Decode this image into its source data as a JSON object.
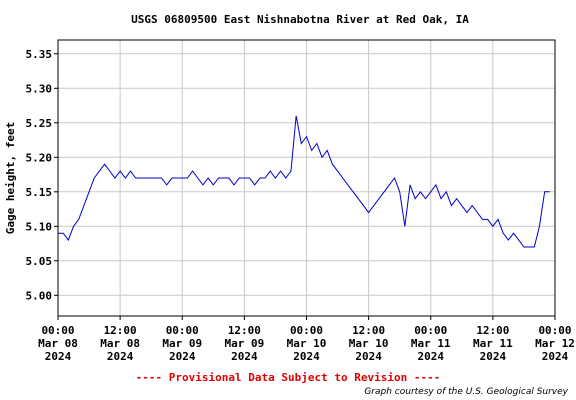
{
  "chart_data": {
    "type": "line",
    "title": "USGS 06809500 East Nishnabotna River at Red Oak, IA",
    "y_label": "Gage height, feet",
    "footer": "---- Provisional Data Subject to Revision ----",
    "credit": "Graph courtesy of the U.S. Geological Survey",
    "color": "#0000cc",
    "grid": true,
    "xlim": [
      "2024-03-08T00:00",
      "2024-03-12T00:00"
    ],
    "xticks": [
      {
        "value": "2024-03-08T00:00",
        "label": "00:00\nMar 08\n2024"
      },
      {
        "value": "2024-03-08T12:00",
        "label": "12:00\nMar 08\n2024"
      },
      {
        "value": "2024-03-09T00:00",
        "label": "00:00\nMar 09\n2024"
      },
      {
        "value": "2024-03-09T12:00",
        "label": "12:00\nMar 09\n2024"
      },
      {
        "value": "2024-03-10T00:00",
        "label": "00:00\nMar 10\n2024"
      },
      {
        "value": "2024-03-10T12:00",
        "label": "12:00\nMar 10\n2024"
      },
      {
        "value": "2024-03-11T00:00",
        "label": "00:00\nMar 11\n2024"
      },
      {
        "value": "2024-03-11T12:00",
        "label": "12:00\nMar 11\n2024"
      },
      {
        "value": "2024-03-12T00:00",
        "label": "00:00\nMar 12\n2024"
      }
    ],
    "ylim": [
      4.97,
      5.37
    ],
    "yticks": [
      {
        "value": 5.0,
        "label": "5.00"
      },
      5.05,
      {
        "value": 5.1,
        "label": "5.10"
      },
      5.15,
      {
        "value": 5.2,
        "label": "5.20"
      },
      5.25,
      {
        "value": 5.3,
        "label": "5.30"
      },
      5.35
    ],
    "x": [
      "2024-03-08T00:00",
      "2024-03-08T01:00",
      "2024-03-08T02:00",
      "2024-03-08T03:00",
      "2024-03-08T04:00",
      "2024-03-08T05:00",
      "2024-03-08T06:00",
      "2024-03-08T07:00",
      "2024-03-08T08:00",
      "2024-03-08T09:00",
      "2024-03-08T10:00",
      "2024-03-08T11:00",
      "2024-03-08T12:00",
      "2024-03-08T13:00",
      "2024-03-08T14:00",
      "2024-03-08T15:00",
      "2024-03-08T16:00",
      "2024-03-08T17:00",
      "2024-03-08T18:00",
      "2024-03-08T19:00",
      "2024-03-08T20:00",
      "2024-03-08T21:00",
      "2024-03-08T22:00",
      "2024-03-08T23:00",
      "2024-03-09T00:00",
      "2024-03-09T01:00",
      "2024-03-09T02:00",
      "2024-03-09T03:00",
      "2024-03-09T04:00",
      "2024-03-09T05:00",
      "2024-03-09T06:00",
      "2024-03-09T07:00",
      "2024-03-09T08:00",
      "2024-03-09T09:00",
      "2024-03-09T10:00",
      "2024-03-09T11:00",
      "2024-03-09T12:00",
      "2024-03-09T13:00",
      "2024-03-09T14:00",
      "2024-03-09T15:00",
      "2024-03-09T16:00",
      "2024-03-09T17:00",
      "2024-03-09T18:00",
      "2024-03-09T19:00",
      "2024-03-09T20:00",
      "2024-03-09T21:00",
      "2024-03-09T22:00",
      "2024-03-09T23:00",
      "2024-03-10T00:00",
      "2024-03-10T01:00",
      "2024-03-10T02:00",
      "2024-03-10T03:00",
      "2024-03-10T04:00",
      "2024-03-10T05:00",
      "2024-03-10T06:00",
      "2024-03-10T07:00",
      "2024-03-10T08:00",
      "2024-03-10T09:00",
      "2024-03-10T10:00",
      "2024-03-10T11:00",
      "2024-03-10T12:00",
      "2024-03-10T13:00",
      "2024-03-10T14:00",
      "2024-03-10T15:00",
      "2024-03-10T16:00",
      "2024-03-10T17:00",
      "2024-03-10T18:00",
      "2024-03-10T19:00",
      "2024-03-10T20:00",
      "2024-03-10T21:00",
      "2024-03-10T22:00",
      "2024-03-10T23:00",
      "2024-03-11T00:00",
      "2024-03-11T01:00",
      "2024-03-11T02:00",
      "2024-03-11T03:00",
      "2024-03-11T04:00",
      "2024-03-11T05:00",
      "2024-03-11T06:00",
      "2024-03-11T07:00",
      "2024-03-11T08:00",
      "2024-03-11T09:00",
      "2024-03-11T10:00",
      "2024-03-11T11:00",
      "2024-03-11T12:00",
      "2024-03-11T13:00",
      "2024-03-11T14:00",
      "2024-03-11T15:00",
      "2024-03-11T16:00",
      "2024-03-11T17:00",
      "2024-03-11T18:00",
      "2024-03-11T19:00",
      "2024-03-11T20:00",
      "2024-03-11T21:00",
      "2024-03-11T22:00",
      "2024-03-11T23:00"
    ],
    "values": [
      5.09,
      5.09,
      5.08,
      5.1,
      5.11,
      5.13,
      5.15,
      5.17,
      5.18,
      5.19,
      5.18,
      5.17,
      5.18,
      5.17,
      5.18,
      5.17,
      5.17,
      5.17,
      5.17,
      5.17,
      5.17,
      5.16,
      5.17,
      5.17,
      5.17,
      5.17,
      5.18,
      5.17,
      5.16,
      5.17,
      5.16,
      5.17,
      5.17,
      5.17,
      5.16,
      5.17,
      5.17,
      5.17,
      5.16,
      5.17,
      5.17,
      5.18,
      5.17,
      5.18,
      5.17,
      5.18,
      5.26,
      5.22,
      5.23,
      5.21,
      5.22,
      5.2,
      5.21,
      5.19,
      5.18,
      5.17,
      5.16,
      5.15,
      5.14,
      5.13,
      5.12,
      5.13,
      5.14,
      5.15,
      5.16,
      5.17,
      5.15,
      5.1,
      5.16,
      5.14,
      5.15,
      5.14,
      5.15,
      5.16,
      5.14,
      5.15,
      5.13,
      5.14,
      5.13,
      5.12,
      5.13,
      5.12,
      5.11,
      5.11,
      5.1,
      5.11,
      5.09,
      5.08,
      5.09,
      5.08,
      5.07,
      5.07,
      5.07,
      5.1,
      5.15,
      5.15
    ]
  }
}
